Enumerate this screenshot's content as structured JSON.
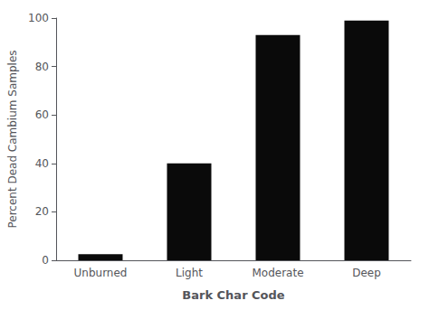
{
  "chart_data": {
    "type": "bar",
    "categories": [
      "Unburned",
      "Light",
      "Moderate",
      "Deep"
    ],
    "values": [
      2.5,
      40,
      93,
      99
    ],
    "color": "#0a0a0a",
    "xlabel": "Bark Char Code",
    "ylabel": "Percent Dead Cambium Samples",
    "ylim": [
      0,
      100
    ],
    "yticks": [
      0,
      20,
      40,
      60,
      80,
      100
    ],
    "grid": false
  }
}
